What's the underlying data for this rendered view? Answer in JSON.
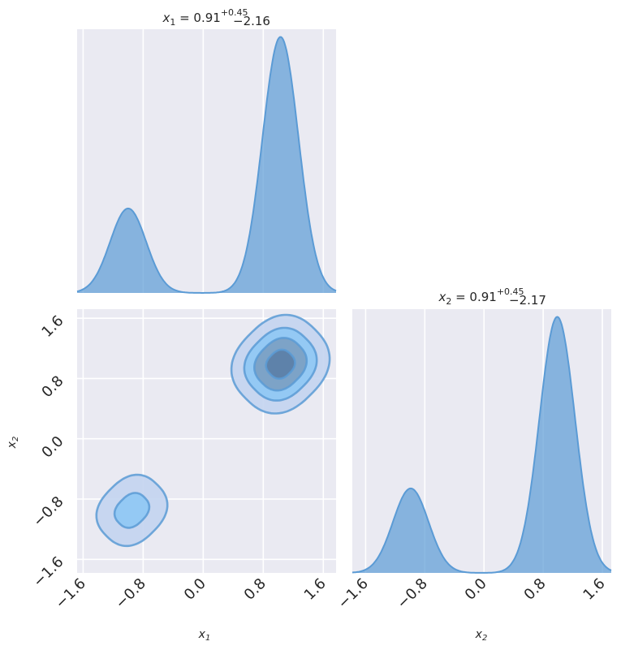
{
  "chart_data": [
    {
      "panel": "x1-marginal",
      "type": "area",
      "title": {
        "var": "x",
        "sub": "1",
        "eq": " = 0.91",
        "plus": "+0.45",
        "minus": "−2.16"
      },
      "x_ticks": [
        "−1.6",
        "−0.8",
        "0.0",
        "0.8",
        "1.6"
      ],
      "x_tick_values": [
        -1.6,
        -0.8,
        0.0,
        0.8,
        1.6
      ],
      "xlim": [
        -1.68,
        1.77
      ],
      "ylim": [
        0,
        1.03
      ],
      "modes": [
        {
          "mu": -1.0,
          "sigma": 0.24,
          "height": 0.33
        },
        {
          "mu": 1.03,
          "sigma": 0.24,
          "height": 1.0
        }
      ],
      "color": "#5b9bd5",
      "grid": true
    },
    {
      "panel": "x1-x2-joint",
      "type": "contour",
      "xlabel": {
        "var": "x",
        "sub": "1"
      },
      "ylabel": {
        "var": "x",
        "sub": "2"
      },
      "x_ticks": [
        "−1.6",
        "−0.8",
        "0.0",
        "0.8",
        "1.6"
      ],
      "y_ticks": [
        "−1.6",
        "−0.8",
        "0.0",
        "0.8",
        "1.6"
      ],
      "tick_values": [
        -1.6,
        -0.8,
        0.0,
        0.8,
        1.6
      ],
      "xlim": [
        -1.68,
        1.77
      ],
      "ylim": [
        -1.78,
        1.72
      ],
      "clusters": [
        {
          "cx": -0.95,
          "cy": -0.95,
          "levels": [
            [
              0.48,
              0.4
            ],
            [
              0.24,
              0.19
            ]
          ]
        },
        {
          "cx": 1.03,
          "cy": 0.99,
          "levels": [
            [
              0.65,
              0.57
            ],
            [
              0.48,
              0.42
            ],
            [
              0.35,
              0.3
            ],
            [
              0.19,
              0.17
            ]
          ]
        }
      ],
      "fills": [
        "#c3d4f0",
        "#8ec8f4",
        "#7a9fc2",
        "#5b7ea6"
      ],
      "stroke": "#5b9bd5",
      "grid": true
    },
    {
      "panel": "x2-marginal",
      "type": "area",
      "title": {
        "var": "x",
        "sub": "2",
        "eq": " = 0.91",
        "plus": "+0.45",
        "minus": "−2.17"
      },
      "xlabel": {
        "var": "x",
        "sub": "2"
      },
      "x_ticks": [
        "−1.6",
        "−0.8",
        "0.0",
        "0.8",
        "1.6"
      ],
      "x_tick_values": [
        -1.6,
        -0.8,
        0.0,
        0.8,
        1.6
      ],
      "xlim": [
        -1.78,
        1.72
      ],
      "ylim": [
        0,
        1.03
      ],
      "modes": [
        {
          "mu": -0.99,
          "sigma": 0.24,
          "height": 0.33
        },
        {
          "mu": 0.99,
          "sigma": 0.24,
          "height": 1.0
        }
      ],
      "color": "#5b9bd5",
      "grid": true
    }
  ],
  "colors": {
    "panel_bg": "#eaeaf2",
    "grid": "#ffffff",
    "fill": "#5b9bd5",
    "text": "#262626"
  }
}
